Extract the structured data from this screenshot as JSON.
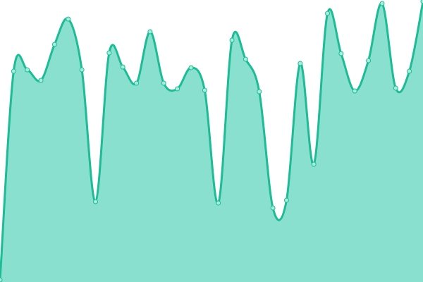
{
  "chart_data": {
    "type": "area",
    "title": "",
    "xlabel": "",
    "ylabel": "",
    "x": [
      0,
      1,
      2,
      3,
      4,
      5,
      6,
      7,
      8,
      9,
      10,
      11,
      12,
      13,
      14,
      15,
      16,
      17,
      18,
      19,
      20,
      21,
      22,
      23,
      24,
      25,
      26,
      27,
      28,
      29,
      30,
      31
    ],
    "values": [
      3,
      299,
      301,
      286,
      337,
      373,
      301,
      114,
      325,
      305,
      282,
      355,
      282,
      274,
      304,
      272,
      112,
      343,
      316,
      270,
      105,
      116,
      310,
      167,
      381,
      324,
      271,
      314,
      395,
      275,
      299,
      398
    ],
    "ylim": [
      0,
      400
    ],
    "grid": false,
    "axes_visible": false,
    "curve": "smooth",
    "markers": true,
    "colors": {
      "line": "#1dbb96",
      "fill": "#8ae0cf",
      "marker_fill": "#a8ecdc"
    }
  }
}
